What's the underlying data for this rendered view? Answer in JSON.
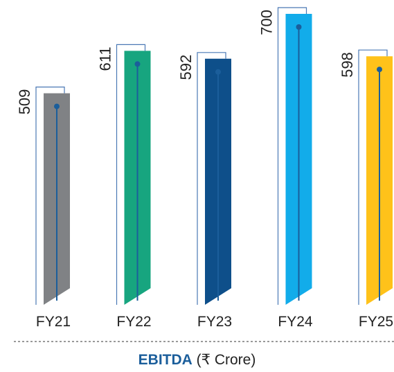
{
  "chart_data": {
    "type": "bar",
    "categories": [
      "FY21",
      "FY22",
      "FY23",
      "FY24",
      "FY25"
    ],
    "values": [
      509,
      611,
      592,
      700,
      598
    ],
    "ylim": [
      0,
      700
    ],
    "colors": [
      "#808285",
      "#17a57f",
      "#0e4f8a",
      "#12acea",
      "#ffc21a"
    ],
    "stem_color": "#1b5e9b",
    "bracket_color": "#4a78b5",
    "title": "EBITDA",
    "unit": "(₹ Crore)",
    "xlabel": "",
    "ylabel": "",
    "grid": false,
    "legend": "none"
  }
}
